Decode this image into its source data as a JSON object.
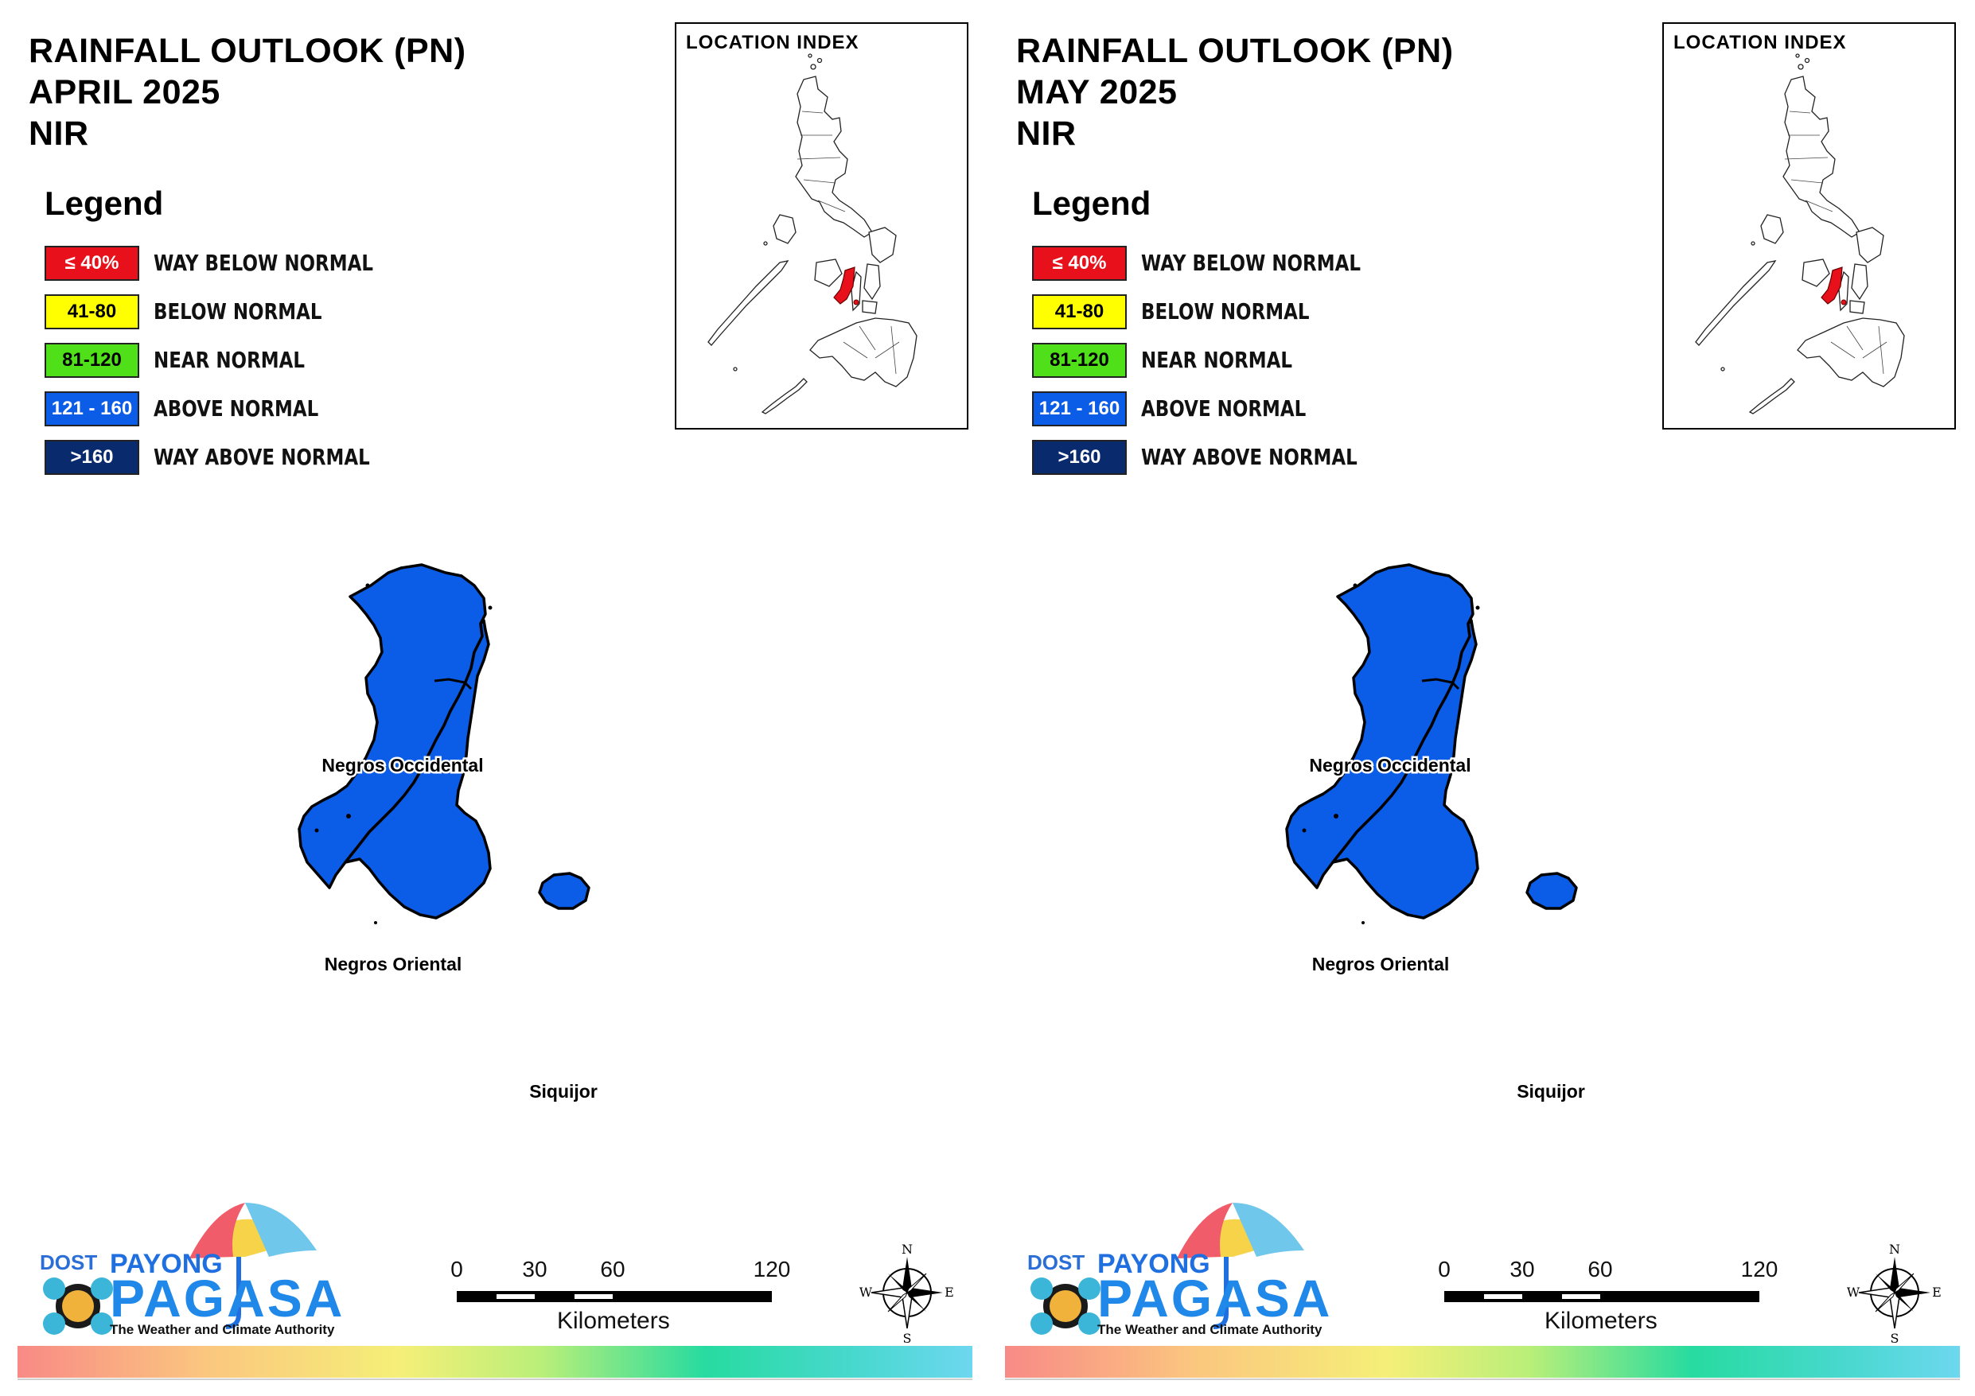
{
  "panels": [
    {
      "title_line1": "RAINFALL OUTLOOK (PN)",
      "title_line2": "APRIL 2025",
      "title_line3": "NIR",
      "legend_heading": "Legend",
      "legend": [
        {
          "range": "≤ 40%",
          "label": "WAY BELOW NORMAL",
          "color": "#e8101a",
          "text_color": "#ffffff"
        },
        {
          "range": "41-80",
          "label": "BELOW NORMAL",
          "color": "#ffff00",
          "text_color": "#000000"
        },
        {
          "range": "81-120",
          "label": "NEAR NORMAL",
          "color": "#4fe01a",
          "text_color": "#000000"
        },
        {
          "range": "121 - 160",
          "label": "ABOVE NORMAL",
          "color": "#0b5ce6",
          "text_color": "#ffffff"
        },
        {
          "range": ">160",
          "label": "WAY ABOVE NORMAL",
          "color": "#0a2a6e",
          "text_color": "#ffffff"
        }
      ],
      "location_index_title": "LOCATION INDEX",
      "provinces": [
        {
          "name": "Negros Occidental",
          "category": "ABOVE NORMAL"
        },
        {
          "name": "Negros Oriental",
          "category": "ABOVE NORMAL"
        },
        {
          "name": "Siquijor",
          "category": "ABOVE NORMAL"
        }
      ],
      "scale_ticks": [
        "0",
        "30",
        "60",
        "120"
      ],
      "scale_unit": "Kilometers",
      "compass": {
        "n": "N",
        "s": "S",
        "e": "E",
        "w": "W"
      },
      "logo": {
        "dost": "DOST",
        "payong": "PAYONG",
        "pagasa": "PAGASA",
        "tagline": "The Weather and Climate Authority"
      }
    },
    {
      "title_line1": "RAINFALL OUTLOOK (PN)",
      "title_line2": "MAY 2025",
      "title_line3": "NIR",
      "legend_heading": "Legend",
      "legend": [
        {
          "range": "≤ 40%",
          "label": "WAY BELOW NORMAL",
          "color": "#e8101a",
          "text_color": "#ffffff"
        },
        {
          "range": "41-80",
          "label": "BELOW NORMAL",
          "color": "#ffff00",
          "text_color": "#000000"
        },
        {
          "range": "81-120",
          "label": "NEAR NORMAL",
          "color": "#4fe01a",
          "text_color": "#000000"
        },
        {
          "range": "121 - 160",
          "label": "ABOVE NORMAL",
          "color": "#0b5ce6",
          "text_color": "#ffffff"
        },
        {
          "range": ">160",
          "label": "WAY ABOVE NORMAL",
          "color": "#0a2a6e",
          "text_color": "#ffffff"
        }
      ],
      "location_index_title": "LOCATION INDEX",
      "provinces": [
        {
          "name": "Negros Occidental",
          "category": "ABOVE NORMAL"
        },
        {
          "name": "Negros Oriental",
          "category": "ABOVE NORMAL"
        },
        {
          "name": "Siquijor",
          "category": "ABOVE NORMAL"
        }
      ],
      "scale_ticks": [
        "0",
        "30",
        "60",
        "120"
      ],
      "scale_unit": "Kilometers",
      "compass": {
        "n": "N",
        "s": "S",
        "e": "E",
        "w": "W"
      },
      "logo": {
        "dost": "DOST",
        "payong": "PAYONG",
        "pagasa": "PAGASA",
        "tagline": "The Weather and Climate Authority"
      }
    }
  ],
  "colors": {
    "province_fill": "#0b5ce6",
    "highlight_region": "#e8101a"
  }
}
